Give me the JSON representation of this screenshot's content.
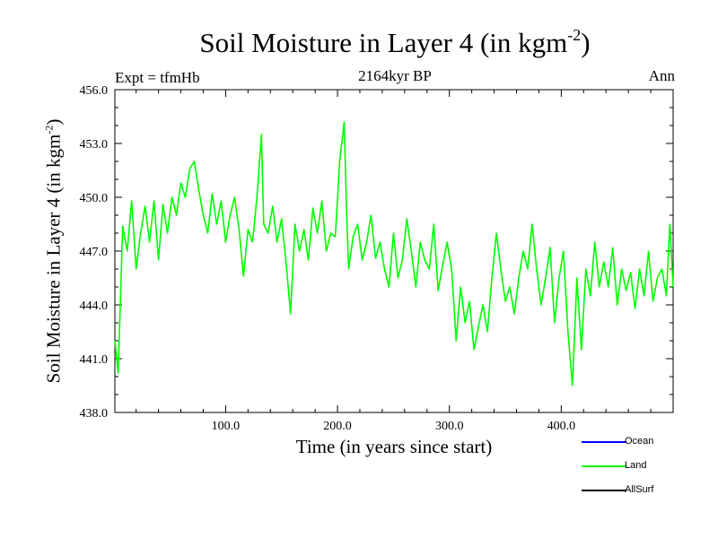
{
  "chart_data": {
    "type": "line",
    "title": "Soil Moisture in Layer 4 (in kgm",
    "title_sup": "-2",
    "title_close": ")",
    "subtitle": "2164kyr BP",
    "experiment_label": "Expt = tfmHb",
    "season_label": "Ann",
    "xlabel": "Time (in years since start)",
    "ylabel": "Soil Moisture in Layer 4 (in kgm",
    "ylabel_sup": "-2",
    "ylabel_close": ")",
    "xlim": [
      1,
      500
    ],
    "ylim": [
      438.0,
      456.0
    ],
    "x_ticks": [
      100,
      200,
      300,
      400
    ],
    "x_tick_labels": [
      "100.0",
      "200.0",
      "300.0",
      "400.0"
    ],
    "y_ticks": [
      438,
      441,
      444,
      447,
      450,
      453,
      456
    ],
    "y_tick_labels": [
      "438.0",
      "441.0",
      "444.0",
      "447.0",
      "450.0",
      "453.0",
      "456.0"
    ],
    "legend_position": "bottom-right, outside",
    "series": [
      {
        "name": "Ocean",
        "color": "#0000ff",
        "values": []
      },
      {
        "name": "Land",
        "color": "#00ff00",
        "x": [
          1,
          4,
          8,
          12,
          16,
          20,
          24,
          28,
          32,
          36,
          40,
          44,
          48,
          52,
          56,
          60,
          64,
          68,
          72,
          76,
          80,
          84,
          88,
          92,
          96,
          100,
          104,
          108,
          112,
          116,
          120,
          124,
          128,
          132,
          134,
          138,
          142,
          146,
          150,
          154,
          158,
          162,
          166,
          170,
          174,
          178,
          182,
          186,
          190,
          194,
          198,
          202,
          206,
          208,
          210,
          214,
          218,
          222,
          226,
          230,
          234,
          238,
          242,
          246,
          250,
          254,
          258,
          262,
          266,
          270,
          274,
          278,
          282,
          286,
          290,
          294,
          298,
          302,
          306,
          310,
          314,
          318,
          322,
          326,
          330,
          334,
          338,
          342,
          346,
          350,
          354,
          358,
          362,
          366,
          370,
          374,
          378,
          382,
          386,
          390,
          394,
          398,
          402,
          406,
          410,
          414,
          418,
          422,
          426,
          430,
          434,
          438,
          442,
          446,
          450,
          454,
          458,
          462,
          466,
          470,
          474,
          478,
          482,
          486,
          490,
          494,
          497,
          500
        ],
        "values": [
          442.0,
          440.2,
          448.4,
          447.0,
          449.8,
          446.0,
          448.0,
          449.5,
          447.5,
          449.8,
          446.5,
          449.6,
          448.0,
          450.0,
          449.0,
          450.8,
          450.0,
          451.6,
          452.0,
          450.4,
          449.0,
          448.0,
          450.2,
          448.5,
          449.8,
          447.5,
          449.0,
          450.0,
          448.2,
          445.6,
          448.2,
          447.5,
          450.0,
          453.5,
          448.5,
          448.0,
          449.5,
          447.5,
          448.8,
          446.4,
          443.5,
          448.5,
          447.0,
          448.2,
          446.5,
          449.4,
          448.0,
          449.8,
          447.0,
          448.0,
          447.8,
          452.0,
          454.2,
          449.5,
          446.0,
          447.8,
          448.5,
          446.5,
          447.5,
          449.0,
          446.6,
          447.5,
          446.0,
          445.0,
          448.0,
          445.5,
          446.5,
          448.8,
          447.0,
          445.0,
          447.5,
          446.5,
          446.0,
          448.5,
          444.8,
          446.2,
          447.5,
          446.0,
          442.0,
          445.0,
          443.0,
          444.2,
          441.5,
          442.8,
          444.0,
          442.5,
          445.5,
          448.0,
          446.0,
          444.2,
          445.0,
          443.5,
          445.5,
          447.0,
          446.0,
          448.5,
          446.0,
          444.0,
          445.5,
          447.2,
          443.0,
          445.5,
          447.0,
          442.5,
          439.5,
          445.5,
          441.5,
          446.0,
          444.5,
          447.5,
          445.0,
          446.4,
          445.0,
          447.2,
          444.0,
          446.0,
          444.8,
          445.8,
          443.8,
          446.0,
          444.5,
          447.0,
          444.2,
          445.5,
          446.0,
          444.5,
          448.5,
          445.0
        ]
      },
      {
        "name": "AllSurf",
        "color": "#000000",
        "values": []
      }
    ]
  }
}
